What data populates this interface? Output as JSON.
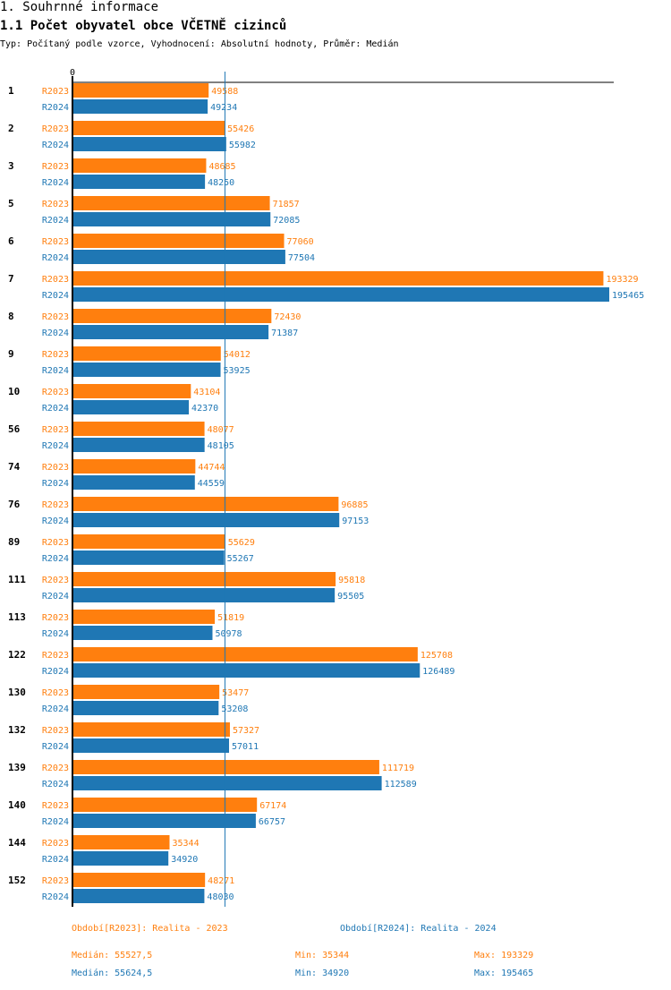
{
  "header": {
    "section_title": "1. Souhrnné informace",
    "chart_title": "1.1 Počet obyvatel obce VČETNĚ cizinců",
    "subtitle": "Typ: Počítaný podle vzorce, Vyhodnocení: Absolutní hodnoty, Průměr: Medián"
  },
  "colors": {
    "R2023": "#ff7f0e",
    "R2024": "#1f77b4",
    "axis": "#000000"
  },
  "chart_data": {
    "type": "bar",
    "orientation": "horizontal",
    "title": "1.1 Počet obyvatel obce VČETNĚ cizinců",
    "xlabel": "",
    "ylabel": "",
    "x_tick_labels": [
      "0"
    ],
    "xlim": [
      0,
      195465
    ],
    "grid": false,
    "median_line": {
      "label": "Medián",
      "value": 55527.5
    },
    "categories": [
      "1",
      "2",
      "3",
      "5",
      "6",
      "7",
      "8",
      "9",
      "10",
      "56",
      "74",
      "76",
      "89",
      "111",
      "113",
      "122",
      "130",
      "132",
      "139",
      "140",
      "144",
      "152"
    ],
    "series": [
      {
        "name": "R2023",
        "values": [
          49588,
          55426,
          48685,
          71857,
          77060,
          193329,
          72430,
          54012,
          43104,
          48077,
          44744,
          96885,
          55629,
          95818,
          51819,
          125708,
          53477,
          57327,
          111719,
          67174,
          35344,
          48271
        ]
      },
      {
        "name": "R2024",
        "values": [
          49234,
          55982,
          48250,
          72085,
          77504,
          195465,
          71387,
          53925,
          42370,
          48105,
          44559,
          97153,
          55267,
          95505,
          50978,
          126489,
          53208,
          57011,
          112589,
          66757,
          34920,
          48030
        ]
      }
    ],
    "legend_position": "bottom"
  },
  "legend": {
    "r2023_label": "Období[R2023]: Realita - 2023",
    "r2024_label": "Období[R2024]: Realita - 2024",
    "r2023_median": "Medián: 55527,5",
    "r2023_min": "Min: 35344",
    "r2023_max": "Max: 193329",
    "r2024_median": "Medián: 55624,5",
    "r2024_min": "Min: 34920",
    "r2024_max": "Max: 195465"
  }
}
